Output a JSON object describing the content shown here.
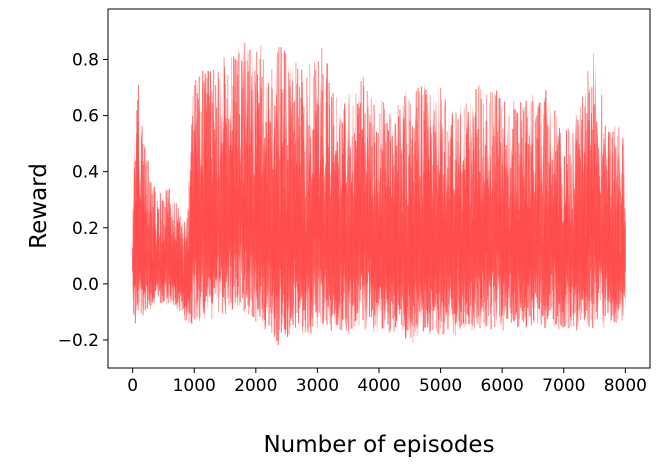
{
  "chart_data": {
    "type": "area",
    "title": "",
    "xlabel": "Number of episodes",
    "ylabel": "Reward",
    "xlim": [
      -400,
      8400
    ],
    "ylim": [
      -0.3,
      0.98
    ],
    "grid": false,
    "legend": "none",
    "color": "#ff4b4b",
    "xticks": [
      0,
      1000,
      2000,
      3000,
      4000,
      5000,
      6000,
      7000,
      8000
    ],
    "xtick_labels": [
      "0",
      "1000",
      "2000",
      "3000",
      "4000",
      "5000",
      "6000",
      "7000",
      "8000"
    ],
    "yticks": [
      -0.2,
      0.0,
      0.2,
      0.4,
      0.6,
      0.8
    ],
    "ytick_labels": [
      "−0.2",
      "0.0",
      "0.2",
      "0.4",
      "0.6",
      "0.8"
    ],
    "series": [
      {
        "x": [
          0,
          100,
          200,
          300,
          400,
          500,
          600,
          700,
          800,
          900,
          1000,
          1200,
          1400,
          1600,
          1800,
          2000,
          2200,
          2400,
          2600,
          2800,
          3000,
          3250,
          3500,
          3750,
          4000,
          4250,
          4500,
          4750,
          5000,
          5250,
          5500,
          5750,
          6000,
          6250,
          6500,
          6750,
          7000,
          7250,
          7500,
          7750,
          8000
        ],
        "upper": [
          0.45,
          0.73,
          0.5,
          0.4,
          0.33,
          0.34,
          0.35,
          0.31,
          0.22,
          0.3,
          0.8,
          0.78,
          0.79,
          0.85,
          0.88,
          0.86,
          0.84,
          0.85,
          0.8,
          0.77,
          0.92,
          0.72,
          0.7,
          0.75,
          0.66,
          0.68,
          0.72,
          0.72,
          0.73,
          0.66,
          0.7,
          0.72,
          0.69,
          0.66,
          0.68,
          0.7,
          0.56,
          0.64,
          0.87,
          0.6,
          0.54
        ],
        "lower": [
          -0.15,
          -0.14,
          -0.1,
          -0.09,
          -0.08,
          -0.07,
          -0.08,
          -0.08,
          -0.12,
          -0.17,
          -0.14,
          -0.13,
          -0.12,
          -0.1,
          -0.1,
          -0.15,
          -0.17,
          -0.23,
          -0.18,
          -0.19,
          -0.18,
          -0.17,
          -0.18,
          -0.16,
          -0.2,
          -0.17,
          -0.22,
          -0.18,
          -0.18,
          -0.19,
          -0.17,
          -0.16,
          -0.17,
          -0.16,
          -0.16,
          -0.17,
          -0.16,
          -0.17,
          -0.16,
          -0.16,
          -0.15
        ]
      }
    ]
  }
}
